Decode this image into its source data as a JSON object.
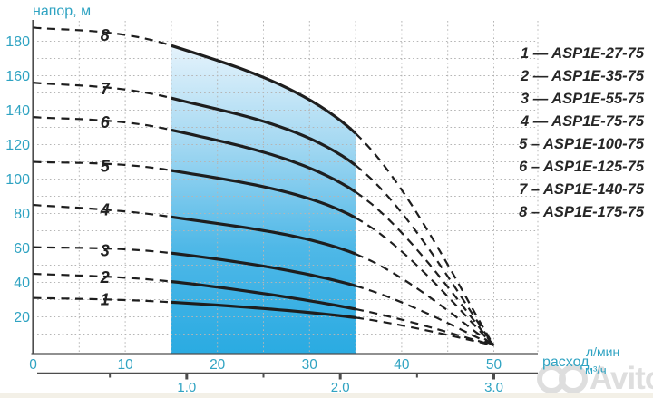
{
  "header": {
    "y_axis_label": "напор, м"
  },
  "x_axis_cluster": {
    "label": "расход",
    "unit_top": "л/мин",
    "unit_bottom": "м³/ч"
  },
  "legend": {
    "items": [
      "1 — ASP1E-27-75",
      "2 — ASP1E-35-75",
      "3 — ASP1E-55-75",
      "4 — ASP1E-75-75",
      "5 – ASP1E-100-75",
      "6 – ASP1E-125-75",
      "7 – ASP1E-140-75",
      "8 – ASP1E-175-75"
    ]
  },
  "watermark": {
    "text": "Avito"
  },
  "colors": {
    "teal": "#2fa3c2",
    "curve": "#1e1e1e",
    "grid": "#b5b5b5",
    "axis": "#4d4d4d",
    "band_top": "#e8f4fc",
    "band_mid1": "#a6d9f2",
    "band_mid2": "#4fb8e7",
    "band_bottom": "#2aabe2"
  },
  "chart_data": {
    "type": "line",
    "title": "",
    "xlabel": "расход",
    "x_units": [
      "л/мин",
      "м³/ч"
    ],
    "ylabel": "напор, м",
    "xlim_lmin": [
      0,
      55
    ],
    "ylim_m": [
      0,
      190
    ],
    "grid": {
      "x_step_lmin": 5,
      "y_step_m": 10
    },
    "x_ticks_lmin": [
      {
        "value": 0,
        "label": "0"
      },
      {
        "value": 10,
        "label": "10"
      },
      {
        "value": 20,
        "label": "20"
      },
      {
        "value": 30,
        "label": "30"
      },
      {
        "value": 40,
        "label": "40"
      },
      {
        "value": 50,
        "label": "50"
      }
    ],
    "y_ticks_m": [
      {
        "value": 20,
        "label": "20"
      },
      {
        "value": 40,
        "label": "40"
      },
      {
        "value": 60,
        "label": "60"
      },
      {
        "value": 80,
        "label": "80"
      },
      {
        "value": 100,
        "label": "100"
      },
      {
        "value": 120,
        "label": "120"
      },
      {
        "value": 140,
        "label": "140"
      },
      {
        "value": 160,
        "label": "160"
      },
      {
        "value": 180,
        "label": "180"
      }
    ],
    "x_ticks_m3h_major": [
      {
        "value": 1,
        "label": "1.0"
      },
      {
        "value": 2,
        "label": "2.0"
      },
      {
        "value": 3,
        "label": "3.0"
      }
    ],
    "x_ticks_m3h_minor": [
      0.5,
      1.5,
      2.5
    ],
    "lmin_per_m3h": 16.667,
    "recommended_band_lmin": [
      15,
      35
    ],
    "series": [
      {
        "label": "1",
        "model": "ASP1E-27-75",
        "points_lmin_m": [
          [
            0,
            31
          ],
          [
            15,
            28.5
          ],
          [
            35,
            19.5
          ],
          [
            50,
            3.5
          ]
        ],
        "label_at": [
          7.8,
          30
        ]
      },
      {
        "label": "2",
        "model": "ASP1E-35-75",
        "points_lmin_m": [
          [
            0,
            45
          ],
          [
            15,
            40.5
          ],
          [
            35,
            24.5
          ],
          [
            50,
            3.5
          ]
        ],
        "label_at": [
          7.8,
          43
        ]
      },
      {
        "label": "3",
        "model": "ASP1E-55-75",
        "points_lmin_m": [
          [
            0,
            60.5
          ],
          [
            15,
            57
          ],
          [
            35,
            38
          ],
          [
            50,
            3.5
          ]
        ],
        "label_at": [
          7.8,
          58.5
        ]
      },
      {
        "label": "4",
        "model": "ASP1E-75-75",
        "points_lmin_m": [
          [
            0,
            85
          ],
          [
            15,
            78
          ],
          [
            35,
            56.5
          ],
          [
            50,
            3.5
          ]
        ],
        "label_at": [
          7.8,
          82
        ]
      },
      {
        "label": "5",
        "model": "ASP1E-100-75",
        "points_lmin_m": [
          [
            0,
            110
          ],
          [
            15,
            105
          ],
          [
            35,
            77.5
          ],
          [
            50,
            3.5
          ]
        ],
        "label_at": [
          7.8,
          107.5
        ]
      },
      {
        "label": "6",
        "model": "ASP1E-125-75",
        "points_lmin_m": [
          [
            0,
            136
          ],
          [
            15,
            128.5
          ],
          [
            35,
            92.5
          ],
          [
            50,
            3.5
          ]
        ],
        "label_at": [
          7.8,
          133
        ]
      },
      {
        "label": "7",
        "model": "ASP1E-140-75",
        "points_lmin_m": [
          [
            0,
            156
          ],
          [
            15,
            147
          ],
          [
            35,
            108
          ],
          [
            50,
            3.5
          ]
        ],
        "label_at": [
          7.8,
          152.5
        ]
      },
      {
        "label": "8",
        "model": "ASP1E-175-75",
        "points_lmin_m": [
          [
            0,
            188
          ],
          [
            15,
            177.5
          ],
          [
            35,
            126.5
          ],
          [
            50,
            3.5
          ]
        ],
        "label_at": [
          7.8,
          183.5
        ]
      }
    ]
  }
}
